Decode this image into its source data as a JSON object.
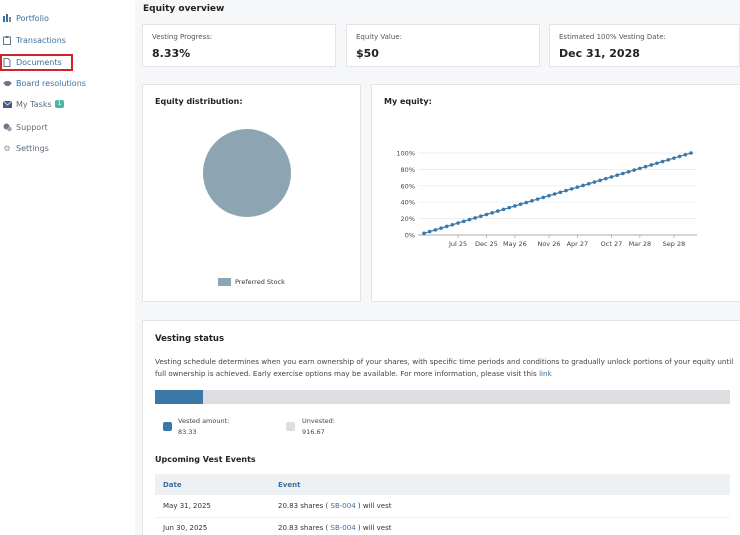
{
  "sidebar": {
    "items": [
      {
        "label": "Portfolio",
        "icon": "bar-chart-icon"
      },
      {
        "label": "Transactions",
        "icon": "clipboard-icon"
      },
      {
        "label": "Documents",
        "icon": "document-icon"
      },
      {
        "label": "Board resolutions",
        "icon": "handshake-icon"
      },
      {
        "label": "My Tasks",
        "icon": "inbox-icon",
        "badge": "1"
      },
      {
        "label": "Support",
        "icon": "support-icon"
      },
      {
        "label": "Settings",
        "icon": "gear-icon"
      }
    ]
  },
  "overview": {
    "title": "Equity overview",
    "stats": [
      {
        "label": "Vesting Progress:",
        "value": "8.33%"
      },
      {
        "label": "Equity Value:",
        "value": "$50"
      },
      {
        "label": "Estimated 100% Vesting Date:",
        "value": "Dec 31, 2028"
      }
    ]
  },
  "distribution": {
    "title": "Equity distribution:",
    "legend": "Preferred Stock",
    "color": "#8da4b2"
  },
  "my_equity": {
    "title": "My equity:"
  },
  "chart_data": [
    {
      "type": "pie",
      "title": "Equity distribution:",
      "categories": [
        "Preferred Stock"
      ],
      "values": [
        100
      ],
      "colors": [
        "#8da4b2"
      ],
      "legend": "bottom-center"
    },
    {
      "type": "line",
      "title": "My equity:",
      "x_ticks": [
        "Jul 25",
        "Dec 25",
        "May 26",
        "Nov 26",
        "Apr 27",
        "Oct 27",
        "Mar 28",
        "Sep 28"
      ],
      "y_ticks": [
        "0%",
        "20%",
        "40%",
        "60%",
        "80%",
        "100%"
      ],
      "ylim": [
        0,
        100
      ],
      "grid": true,
      "series": [
        {
          "color": "#3b78a7",
          "x": [
            "Jan 25",
            "Feb 25",
            "Mar 25",
            "Apr 25",
            "May 25",
            "Jun 25",
            "Jul 25",
            "Aug 25",
            "Sep 25",
            "Oct 25",
            "Nov 25",
            "Dec 25",
            "Jan 26",
            "Feb 26",
            "Mar 26",
            "Apr 26",
            "May 26",
            "Jun 26",
            "Jul 26",
            "Aug 26",
            "Sep 26",
            "Oct 26",
            "Nov 26",
            "Dec 26",
            "Jan 27",
            "Feb 27",
            "Mar 27",
            "Apr 27",
            "May 27",
            "Jun 27",
            "Jul 27",
            "Aug 27",
            "Sep 27",
            "Oct 27",
            "Nov 27",
            "Dec 27",
            "Jan 28",
            "Feb 28",
            "Mar 28",
            "Apr 28",
            "May 28",
            "Jun 28",
            "Jul 28",
            "Aug 28",
            "Sep 28",
            "Oct 28",
            "Nov 28",
            "Dec 28"
          ],
          "values": [
            2.08,
            4.17,
            6.25,
            8.33,
            10.42,
            12.5,
            14.58,
            16.67,
            18.75,
            20.83,
            22.92,
            25,
            27.08,
            29.17,
            31.25,
            33.33,
            35.42,
            37.5,
            39.58,
            41.67,
            43.75,
            45.83,
            47.92,
            50,
            52.08,
            54.17,
            56.25,
            58.33,
            60.42,
            62.5,
            64.58,
            66.67,
            68.75,
            70.83,
            72.92,
            75,
            77.08,
            79.17,
            81.25,
            83.33,
            85.42,
            87.5,
            89.58,
            91.67,
            93.75,
            95.83,
            97.92,
            100
          ]
        }
      ]
    }
  ],
  "vesting": {
    "title": "Vesting status",
    "description": "Vesting schedule determines when you earn ownership of your shares, with specific time periods and conditions to gradually unlock portions of your equity until full ownership is achieved. Early exercise options may be available. For more information, please visit this",
    "link_label": "link",
    "progress_fraction": 0.0833,
    "vested_label": "Vested amount:",
    "vested_value": "83.33",
    "vested_color": "#3b78a7",
    "unvested_label": "Unvested:",
    "unvested_value": "916.67",
    "unvested_color": "#dcdee1"
  },
  "events": {
    "title": "Upcoming Vest Events",
    "columns": [
      "Date",
      "Event"
    ],
    "rows": [
      {
        "date": "May 31, 2025",
        "shares": "20.83 shares (",
        "sb": "SB-004",
        "tail": ") will vest"
      },
      {
        "date": "Jun 30, 2025",
        "shares": "20.83 shares (",
        "sb": "SB-004",
        "tail": ") will vest"
      }
    ]
  }
}
